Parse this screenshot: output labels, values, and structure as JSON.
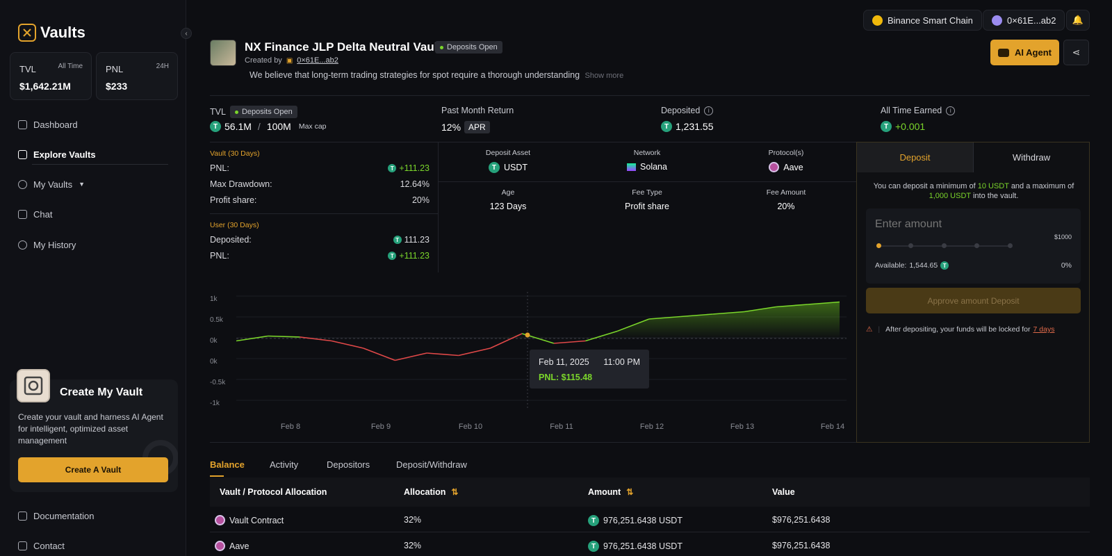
{
  "sidebar": {
    "brand": "Vaults",
    "stats": [
      {
        "label": "TVL",
        "period": "All Time",
        "value": "$1,642.21M"
      },
      {
        "label": "PNL",
        "period": "24H",
        "value": "$233"
      }
    ],
    "nav": [
      "Dashboard",
      "Explore Vaults",
      "My Vaults",
      "Chat",
      "My History"
    ],
    "promo": {
      "title": "Create My Vault",
      "description": "Create your vault and harness AI Agent for intelligent, optimized asset management",
      "button": "Create A Vault"
    },
    "footer": [
      "Documentation",
      "Contact"
    ]
  },
  "topbar": {
    "network": "Binance Smart Chain",
    "wallet": "0×61E...ab2"
  },
  "vault": {
    "title": "NX Finance JLP Delta Neutral Vaul",
    "status": "Deposits Open",
    "created_by_label": "Created by",
    "creator": "0×61E...ab2",
    "description": "We believe that long-term trading strategies for spot require a thorough understanding",
    "show_more": "Show more",
    "ai_agent": "AI Agent"
  },
  "metrics": {
    "tvl_label": "TVL",
    "tvl_status": "Deposits Open",
    "tvl_value": "56.1M",
    "tvl_sep": "/",
    "tvl_cap": "100M",
    "tvl_cap_label": "Max cap",
    "return_label": "Past Month Return",
    "return_value": "12%",
    "return_unit": "APR",
    "deposited_label": "Deposited",
    "deposited_value": "1,231.55",
    "earned_label": "All Time Earned",
    "earned_value": "+0.001"
  },
  "vault_stats": {
    "section": "Vault (30 Days)",
    "rows": [
      {
        "label": "PNL:",
        "value": "+111.23"
      },
      {
        "label": "Max Drawdown:",
        "value": "12.64%"
      },
      {
        "label": "Profit share:",
        "value": "20%"
      }
    ]
  },
  "user_stats": {
    "section": "User (30 Days)",
    "rows": [
      {
        "label": "Deposited:",
        "value": "111.23"
      },
      {
        "label": "PNL:",
        "value": "+111.23"
      }
    ]
  },
  "details": [
    {
      "label": "Deposit Asset",
      "value": "USDT"
    },
    {
      "label": "Network",
      "value": "Solana"
    },
    {
      "label": "Protocol(s)",
      "value": "Aave"
    },
    {
      "label": "Age",
      "value": "123 Days"
    },
    {
      "label": "Fee Type",
      "value": "Profit share"
    },
    {
      "label": "Fee Amount",
      "value": "20%"
    }
  ],
  "deposit_panel": {
    "tabs": [
      "Deposit",
      "Withdraw"
    ],
    "note_pre": "You can deposit a minimum of",
    "min": "10 USDT",
    "note_mid": "and a maximum of",
    "max": "1,000 USDT",
    "note_post": "into the vault.",
    "placeholder": "Enter amount",
    "max_label": "$1000",
    "available_label": "Available:",
    "available": "1,544.65",
    "percent": "0%",
    "slider_fraction": 0,
    "approve": "Approve amount Deposit",
    "lock_note": "After depositing, your funds will be locked for",
    "lock_days": "7 days"
  },
  "chart_data": {
    "type": "line",
    "y_ticks": [
      "1k",
      "0.5k",
      "0k",
      "0k",
      "-0.5k",
      "-1k"
    ],
    "x_ticks": [
      "Feb 8",
      "Feb 9",
      "Feb 10",
      "Feb 11",
      "Feb 12",
      "Feb 13",
      "Feb 14"
    ],
    "ylim": [
      -1000,
      1000
    ],
    "series": [
      {
        "x": [
          "Feb 7",
          "Feb 7.5",
          "Feb 8",
          "Feb 8.5",
          "Feb 9",
          "Feb 9.3",
          "Feb 9.6",
          "Feb 10",
          "Feb 10.3",
          "Feb 10.6",
          "Feb 11",
          "Feb 11.3",
          "Feb 11.6",
          "Feb 12",
          "Feb 12.3",
          "Feb 12.6",
          "Feb 13",
          "Feb 13.3",
          "Feb 13.6",
          "Feb 14"
        ],
        "values": [
          -50,
          50,
          30,
          -50,
          -200,
          -450,
          -300,
          -350,
          -200,
          100,
          -100,
          -50,
          150,
          400,
          450,
          500,
          550,
          650,
          700,
          750
        ]
      }
    ],
    "tooltip": {
      "date": "Feb 11, 2025",
      "time": "11:00 PM",
      "pnl": "PNL: $115.48"
    }
  },
  "bottom_tabs": [
    "Balance",
    "Activity",
    "Depositors",
    "Deposit/Withdraw"
  ],
  "table": {
    "headers": [
      "Vault / Protocol Allocation",
      "Allocation",
      "Amount",
      "Value"
    ],
    "rows": [
      {
        "name": "Vault Contract",
        "allocation": "32%",
        "amount": "976,251.6438 USDT",
        "value": "$976,251.6438"
      },
      {
        "name": "Aave",
        "allocation": "32%",
        "amount": "976,251.6438 USDT",
        "value": "$976,251.6438"
      }
    ]
  }
}
